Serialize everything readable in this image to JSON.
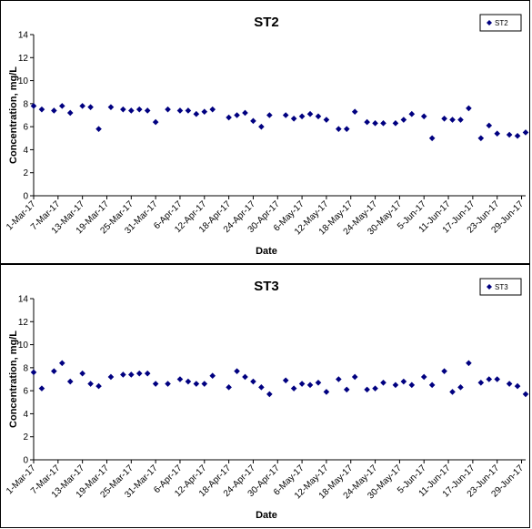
{
  "chart_data": [
    {
      "type": "scatter",
      "title": "ST2",
      "xlabel": "Date",
      "ylabel": "Concentration, mg/L",
      "ylim": [
        0,
        14
      ],
      "yticks": [
        0,
        2,
        4,
        6,
        8,
        10,
        12,
        14
      ],
      "xlim": [
        "2017-03-01",
        "2017-06-30"
      ],
      "xtick_labels": [
        "1-Mar-17",
        "7-Mar-17",
        "13-Mar-17",
        "19-Mar-17",
        "25-Mar-17",
        "31-Mar-17",
        "6-Apr-17",
        "12-Apr-17",
        "18-Apr-17",
        "24-Apr-17",
        "30-Apr-17",
        "6-May-17",
        "12-May-17",
        "18-May-17",
        "24-May-17",
        "30-May-17",
        "5-Jun-17",
        "11-Jun-17",
        "17-Jun-17",
        "23-Jun-17",
        "29-Jun-17"
      ],
      "grid": false,
      "legend": "top-right",
      "color": "#000080",
      "series": [
        {
          "name": "ST2",
          "x": [
            "2017-03-01",
            "2017-03-03",
            "2017-03-06",
            "2017-03-08",
            "2017-03-10",
            "2017-03-13",
            "2017-03-15",
            "2017-03-17",
            "2017-03-20",
            "2017-03-23",
            "2017-03-25",
            "2017-03-27",
            "2017-03-29",
            "2017-03-31",
            "2017-04-03",
            "2017-04-06",
            "2017-04-08",
            "2017-04-10",
            "2017-04-12",
            "2017-04-14",
            "2017-04-18",
            "2017-04-20",
            "2017-04-22",
            "2017-04-24",
            "2017-04-26",
            "2017-04-28",
            "2017-05-02",
            "2017-05-04",
            "2017-05-06",
            "2017-05-08",
            "2017-05-10",
            "2017-05-12",
            "2017-05-15",
            "2017-05-17",
            "2017-05-19",
            "2017-05-22",
            "2017-05-24",
            "2017-05-26",
            "2017-05-29",
            "2017-05-31",
            "2017-06-02",
            "2017-06-05",
            "2017-06-07",
            "2017-06-10",
            "2017-06-12",
            "2017-06-14",
            "2017-06-16",
            "2017-06-19",
            "2017-06-21",
            "2017-06-23",
            "2017-06-26",
            "2017-06-28",
            "2017-06-30"
          ],
          "y": [
            7.8,
            7.5,
            7.4,
            7.8,
            7.2,
            7.8,
            7.7,
            5.8,
            7.7,
            7.5,
            7.4,
            7.5,
            7.4,
            6.4,
            7.5,
            7.4,
            7.4,
            7.1,
            7.3,
            7.5,
            6.8,
            7.0,
            7.2,
            6.5,
            6.0,
            7.0,
            7.0,
            6.7,
            6.9,
            7.1,
            6.9,
            6.6,
            5.8,
            5.8,
            7.3,
            6.4,
            6.3,
            6.3,
            6.3,
            6.6,
            7.1,
            6.9,
            5.0,
            6.7,
            6.6,
            6.6,
            7.6,
            5.0,
            6.1,
            5.4,
            5.3,
            5.2,
            5.5
          ]
        }
      ]
    },
    {
      "type": "scatter",
      "title": "ST3",
      "xlabel": "Date",
      "ylabel": "Concentration, mg/L",
      "ylim": [
        0,
        14
      ],
      "yticks": [
        0,
        2,
        4,
        6,
        8,
        10,
        12,
        14
      ],
      "xlim": [
        "2017-03-01",
        "2017-06-30"
      ],
      "xtick_labels": [
        "1-Mar-17",
        "7-Mar-17",
        "13-Mar-17",
        "19-Mar-17",
        "25-Mar-17",
        "31-Mar-17",
        "6-Apr-17",
        "12-Apr-17",
        "18-Apr-17",
        "24-Apr-17",
        "30-Apr-17",
        "6-May-17",
        "12-May-17",
        "18-May-17",
        "24-May-17",
        "30-May-17",
        "5-Jun-17",
        "11-Jun-17",
        "17-Jun-17",
        "23-Jun-17",
        "29-Jun-17"
      ],
      "grid": false,
      "legend": "top-right",
      "color": "#000080",
      "series": [
        {
          "name": "ST3",
          "x": [
            "2017-03-01",
            "2017-03-03",
            "2017-03-06",
            "2017-03-08",
            "2017-03-10",
            "2017-03-13",
            "2017-03-15",
            "2017-03-17",
            "2017-03-20",
            "2017-03-23",
            "2017-03-25",
            "2017-03-27",
            "2017-03-29",
            "2017-03-31",
            "2017-04-03",
            "2017-04-06",
            "2017-04-08",
            "2017-04-10",
            "2017-04-12",
            "2017-04-14",
            "2017-04-18",
            "2017-04-20",
            "2017-04-22",
            "2017-04-24",
            "2017-04-26",
            "2017-04-28",
            "2017-05-02",
            "2017-05-04",
            "2017-05-06",
            "2017-05-08",
            "2017-05-10",
            "2017-05-12",
            "2017-05-15",
            "2017-05-17",
            "2017-05-19",
            "2017-05-22",
            "2017-05-24",
            "2017-05-26",
            "2017-05-29",
            "2017-05-31",
            "2017-06-02",
            "2017-06-05",
            "2017-06-07",
            "2017-06-10",
            "2017-06-12",
            "2017-06-14",
            "2017-06-16",
            "2017-06-19",
            "2017-06-21",
            "2017-06-23",
            "2017-06-26",
            "2017-06-28",
            "2017-06-30"
          ],
          "y": [
            7.6,
            6.2,
            7.7,
            8.4,
            6.8,
            7.5,
            6.6,
            6.4,
            7.2,
            7.4,
            7.4,
            7.5,
            7.5,
            6.6,
            6.6,
            7.0,
            6.8,
            6.6,
            6.6,
            7.3,
            6.3,
            7.7,
            7.2,
            6.8,
            6.3,
            5.7,
            6.9,
            6.2,
            6.6,
            6.5,
            6.7,
            5.9,
            7.0,
            6.1,
            7.2,
            6.1,
            6.2,
            6.7,
            6.5,
            6.8,
            6.5,
            7.2,
            6.5,
            7.7,
            5.9,
            6.3,
            8.4,
            6.7,
            7.0,
            7.0,
            6.6,
            6.4,
            5.7
          ]
        }
      ]
    }
  ]
}
